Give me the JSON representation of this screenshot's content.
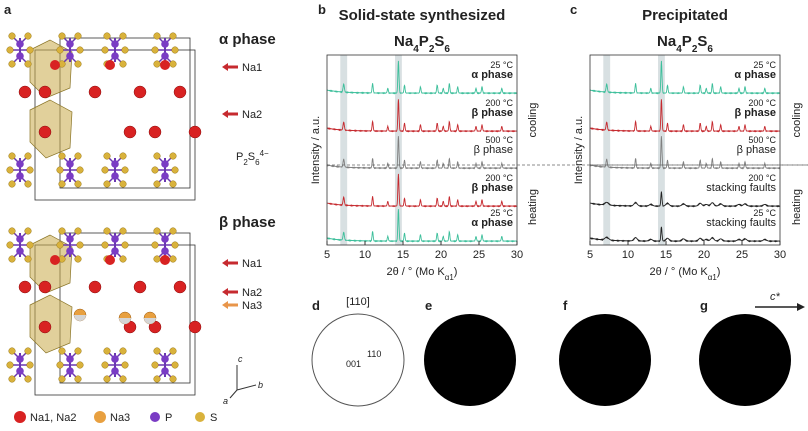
{
  "panel_a": {
    "label": "a",
    "alpha_title": "α phase",
    "alpha_sites": [
      "Na1",
      "Na2"
    ],
    "anion": [
      "P",
      "2",
      "S",
      "6",
      "4−"
    ],
    "beta_title": "β phase",
    "beta_sites": [
      "Na1",
      "Na2",
      "Na3"
    ],
    "axes": [
      "c",
      "b",
      "a"
    ],
    "legend": [
      "Na1, Na2",
      "Na3",
      "P",
      "S"
    ]
  },
  "panel_b": {
    "label": "b",
    "title": "Solid-state synthesized",
    "formula": [
      "Na",
      "4",
      "P",
      "2",
      "S",
      "6"
    ],
    "y_label": "Intensity / a.u.",
    "x_label": [
      "2θ / ° (Mo K",
      "α1",
      ")"
    ],
    "xticks": [
      5,
      10,
      15,
      20,
      25,
      30
    ],
    "traces": [
      {
        "temperature": "25 °C",
        "phase": "α phase",
        "color": "#3dbf9b"
      },
      {
        "temperature": "200 °C",
        "phase": "β phase",
        "color": "#c62a2f"
      },
      {
        "temperature": "500 °C",
        "phase": "β phase",
        "color": "#808080"
      },
      {
        "temperature": "200 °C",
        "phase": "β phase",
        "color": "#c62a2f"
      },
      {
        "temperature": "25 °C",
        "phase": "α phase",
        "color": "#3dbf9b"
      }
    ]
  },
  "panel_c": {
    "label": "c",
    "title": "Precipitated",
    "formula": [
      "Na",
      "4",
      "P",
      "2",
      "S",
      "6"
    ],
    "y_label": "Intensity / a.u.",
    "x_label": [
      "2θ / ° (Mo K",
      "α1",
      ")"
    ],
    "xticks": [
      5,
      10,
      15,
      20,
      25,
      30
    ],
    "traces": [
      {
        "temperature": "25 °C",
        "phase": "α phase",
        "color": "#3dbf9b"
      },
      {
        "temperature": "200 °C",
        "phase": "β phase",
        "color": "#c62a2f"
      },
      {
        "temperature": "500 °C",
        "phase": "β phase",
        "color": "#808080"
      },
      {
        "temperature": "200 °C",
        "phase": "stacking faults",
        "color": "#222222"
      },
      {
        "temperature": "25 °C",
        "phase": "stacking faults",
        "color": "#222222"
      }
    ],
    "sides": [
      "cooling",
      "heating"
    ]
  },
  "panel_d": {
    "label": "d",
    "zone": "[110]",
    "spots": [
      "110",
      "001"
    ]
  },
  "panel_e": {
    "label": "e"
  },
  "panel_f": {
    "label": "f"
  },
  "panel_g": {
    "label": "g",
    "direction": "c*"
  }
}
